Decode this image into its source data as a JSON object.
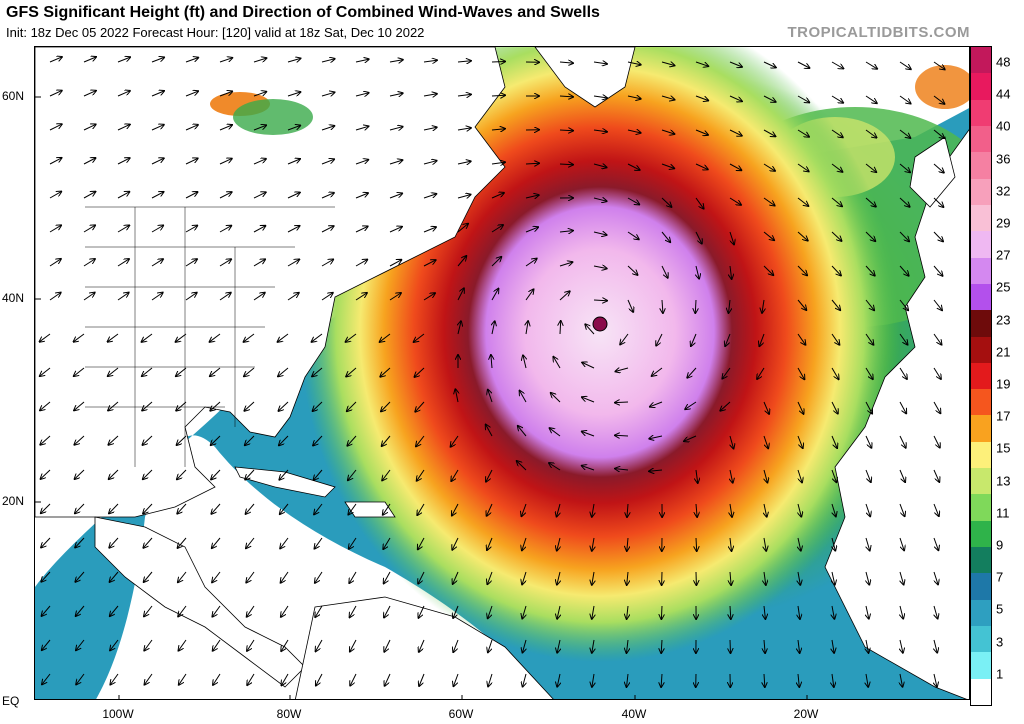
{
  "header": {
    "title": "GFS Significant Height (ft) and Direction of Combined Wind-Waves and Swells",
    "subtitle": "Init: 18z Dec 05 2022   Forecast Hour: [120]   valid at 18z Sat, Dec 10 2022",
    "brand": "TROPICALTIDBITS.COM"
  },
  "map": {
    "latitude_labels": [
      "60N",
      "40N",
      "20N",
      "EQ"
    ],
    "longitude_labels": [
      "100W",
      "80W",
      "60W",
      "40W",
      "20W"
    ],
    "storm_center_marker": "low-center-icon"
  },
  "colorbar": {
    "unit": "ft",
    "labels": [
      "48",
      "44",
      "40",
      "36",
      "32",
      "29",
      "27",
      "25",
      "23",
      "21",
      "19",
      "17",
      "15",
      "13",
      "11",
      "9",
      "7",
      "5",
      "3",
      "1"
    ],
    "colors": [
      "#c2185b",
      "#e8195e",
      "#f03c72",
      "#f25f8a",
      "#f580a2",
      "#f7a0bb",
      "#f9c0d6",
      "#efb8f2",
      "#d488f0",
      "#b350ec",
      "#6e0b0b",
      "#a50f0f",
      "#e31a1c",
      "#f5561e",
      "#f9a21f",
      "#fdf07a",
      "#c8e86c",
      "#7fd95a",
      "#2fb34a",
      "#137e5e",
      "#1e78a8",
      "#2e9fc0",
      "#44c3d3",
      "#7af0f5",
      "#ffffff"
    ]
  }
}
